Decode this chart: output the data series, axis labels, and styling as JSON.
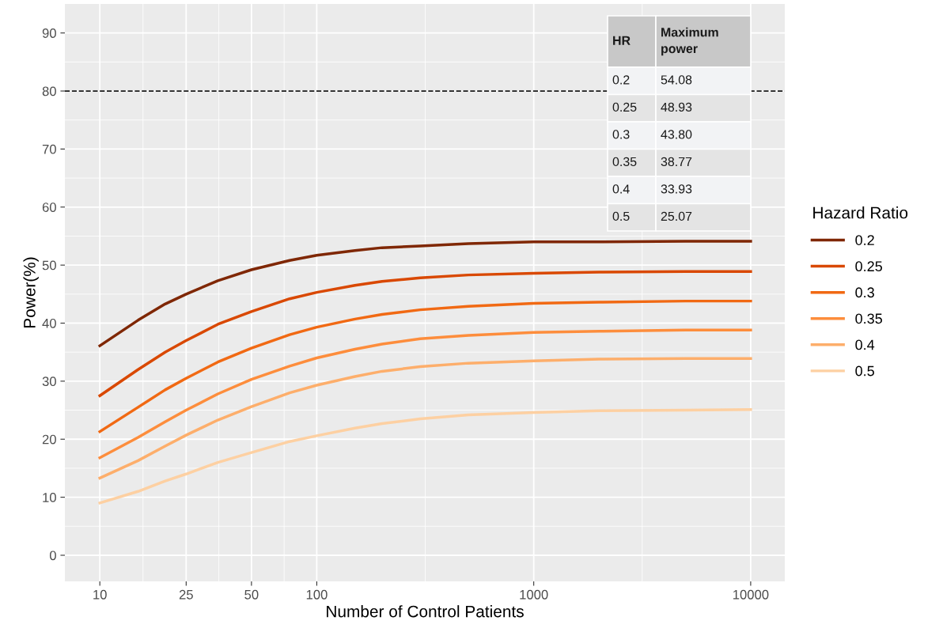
{
  "chart_data": {
    "type": "line",
    "xlabel": "Number of Control Patients",
    "ylabel": "Power(%)",
    "legend_title": "Hazard Ratio",
    "log": "x",
    "xlim": [
      6.9,
      14360
    ],
    "xticks": [
      10,
      25,
      50,
      100,
      1000,
      10000
    ],
    "ylim": [
      -4.5,
      95
    ],
    "yticks": [
      0,
      10,
      20,
      30,
      40,
      50,
      60,
      70,
      80,
      90
    ],
    "grid": true,
    "legend": "right",
    "marker": "none",
    "line_style": "solid",
    "x": [
      10,
      15,
      20,
      25,
      35,
      50,
      75,
      100,
      150,
      200,
      300,
      500,
      1000,
      2000,
      5000,
      10000
    ],
    "series": [
      {
        "name": "0.2",
        "color": "#7f2704",
        "values": [
          36.1,
          40.5,
          43.3,
          45,
          47.3,
          49.2,
          50.8,
          51.7,
          52.5,
          53,
          53.3,
          53.7,
          54,
          54,
          54.1,
          54.1
        ]
      },
      {
        "name": "0.25",
        "color": "#d94801",
        "values": [
          27.5,
          32,
          35,
          37,
          39.8,
          42,
          44.2,
          45.3,
          46.5,
          47.2,
          47.8,
          48.3,
          48.6,
          48.8,
          48.9,
          48.9
        ]
      },
      {
        "name": "0.3",
        "color": "#f16913",
        "values": [
          21.3,
          25.5,
          28.5,
          30.5,
          33.3,
          35.7,
          38,
          39.3,
          40.7,
          41.5,
          42.3,
          42.9,
          43.4,
          43.6,
          43.8,
          43.8
        ]
      },
      {
        "name": "0.35",
        "color": "#fd8d3c",
        "values": [
          16.8,
          20.3,
          23,
          25,
          27.8,
          30.3,
          32.6,
          34,
          35.5,
          36.4,
          37.3,
          37.9,
          38.4,
          38.6,
          38.8,
          38.8
        ]
      },
      {
        "name": "0.4",
        "color": "#fdae6b",
        "values": [
          13.3,
          16.3,
          18.8,
          20.7,
          23.3,
          25.6,
          28,
          29.3,
          30.8,
          31.7,
          32.5,
          33.1,
          33.5,
          33.8,
          33.9,
          33.9
        ]
      },
      {
        "name": "0.5",
        "color": "#fdd0a2",
        "values": [
          9,
          11,
          12.8,
          14,
          16,
          17.7,
          19.6,
          20.6,
          21.9,
          22.7,
          23.5,
          24.2,
          24.6,
          24.9,
          25,
          25.1
        ]
      }
    ],
    "ref_lines": [
      {
        "axis": "y",
        "value": 80,
        "label": null,
        "color": "#1a1a1a",
        "line_style": "dashed"
      }
    ],
    "annotations": [
      "HR",
      "Maximum power",
      "0.2",
      "54.08",
      "0.25",
      "48.93",
      "0.3",
      "43.80",
      "0.35",
      "38.77",
      "0.4",
      "33.93",
      "0.5",
      "25.07"
    ]
  }
}
